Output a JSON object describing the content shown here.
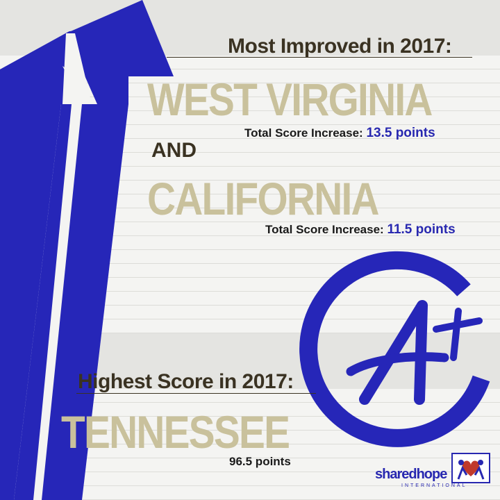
{
  "colors": {
    "arrow_blue": "#2626b8",
    "tan": "#c9c19c",
    "dark_heading": "#3a3222",
    "number_blue": "#2828b0"
  },
  "most_improved": {
    "heading": "Most Improved in 2017:",
    "state1": {
      "name": "WEST VIRGINIA",
      "increase_label": "Total Score Increase:",
      "increase_value": "13.5 points"
    },
    "connector": "AND",
    "state2": {
      "name": "CALIFORNIA",
      "increase_label": "Total Score Increase:",
      "increase_value": "11.5 points"
    }
  },
  "highest": {
    "heading": "Highest Score in 2017:",
    "state": "TENNESSEE",
    "points": "96.5 points"
  },
  "grade_badge": {
    "text": "A+"
  },
  "logo": {
    "word1": "shared",
    "word2": "hope",
    "subtitle": "INTERNATIONAL"
  },
  "icons": [
    "up-arrow-icon",
    "grade-a-plus-icon",
    "shared-hope-logo-icon"
  ]
}
